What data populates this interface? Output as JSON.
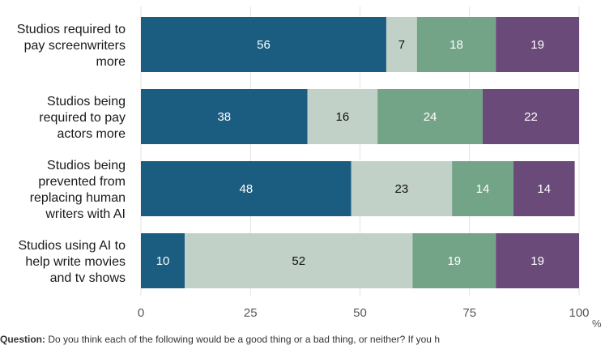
{
  "chart_data": {
    "type": "bar",
    "orientation": "horizontal",
    "stacked": true,
    "categories": [
      "Studios required to pay screenwriters more",
      "Studios being required to pay actors more",
      "Studios being prevented from replacing human writers with AI",
      "Studios using AI to help write movies and tv shows"
    ],
    "series": [
      {
        "values": [
          56,
          38,
          48,
          10
        ],
        "color": "#1b5d80"
      },
      {
        "values": [
          7,
          16,
          23,
          52
        ],
        "color": "#c2d1c8"
      },
      {
        "values": [
          18,
          24,
          14,
          19
        ],
        "color": "#73a488"
      },
      {
        "values": [
          19,
          22,
          14,
          19
        ],
        "color": "#6a4a78"
      }
    ],
    "xlim": [
      0,
      100
    ],
    "xticks": [
      "0",
      "25",
      "50",
      "75",
      "100"
    ],
    "unit": "%",
    "grid": true
  },
  "footnote": {
    "label": "Question:",
    "text": " Do you think each of the following would be a good thing or a bad thing, or neither? If you h"
  }
}
